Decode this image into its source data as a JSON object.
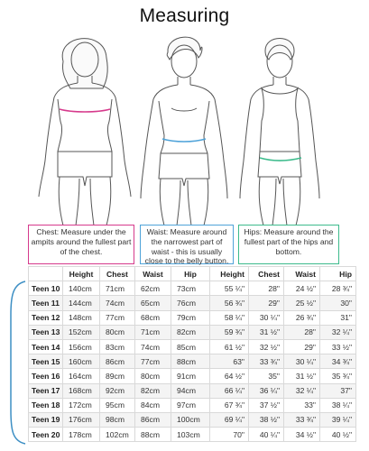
{
  "title": "Measuring",
  "colors": {
    "chest": "#d63a8c",
    "waist": "#4fa3d9",
    "hips": "#3dbb8c",
    "brace": "#3d8fc4"
  },
  "callouts": {
    "chest": "Chest: Measure under the ampits around the fullest part of the chest.",
    "waist": "Waist: Measure around the narrowest part of waist - this is usually close to the belly button.",
    "hips": "Hips: Measure around the fullest part of the hips and bottom."
  },
  "table": {
    "headers": [
      "",
      "Height",
      "Chest",
      "Waist",
      "Hip",
      "Height",
      "Chest",
      "Waist",
      "Hip"
    ],
    "rows": [
      [
        "Teen 10",
        "140cm",
        "71cm",
        "62cm",
        "73cm",
        "55 ¼\"",
        "28\"",
        "24 ½\"",
        "28 ¾\""
      ],
      [
        "Teen 11",
        "144cm",
        "74cm",
        "65cm",
        "76cm",
        "56 ¾\"",
        "29\"",
        "25 ½\"",
        "30\""
      ],
      [
        "Teen 12",
        "148cm",
        "77cm",
        "68cm",
        "79cm",
        "58 ¼\"",
        "30 ¼\"",
        "26 ¾\"",
        "31\""
      ],
      [
        "Teen 13",
        "152cm",
        "80cm",
        "71cm",
        "82cm",
        "59 ¾\"",
        "31 ½\"",
        "28\"",
        "32 ¼\""
      ],
      [
        "Teen 14",
        "156cm",
        "83cm",
        "74cm",
        "85cm",
        "61 ½\"",
        "32 ½\"",
        "29\"",
        "33 ½\""
      ],
      [
        "Teen 15",
        "160cm",
        "86cm",
        "77cm",
        "88cm",
        "63\"",
        "33 ¾\"",
        "30 ¼\"",
        "34 ¾\""
      ],
      [
        "Teen 16",
        "164cm",
        "89cm",
        "80cm",
        "91cm",
        "64 ½\"",
        "35\"",
        "31 ½\"",
        "35 ¾\""
      ],
      [
        "Teen 17",
        "168cm",
        "92cm",
        "82cm",
        "94cm",
        "66 ¼\"",
        "36 ¼\"",
        "32 ¼\"",
        "37\""
      ],
      [
        "Teen 18",
        "172cm",
        "95cm",
        "84cm",
        "97cm",
        "67 ¾\"",
        "37 ½\"",
        "33\"",
        "38 ¼\""
      ],
      [
        "Teen 19",
        "176cm",
        "98cm",
        "86cm",
        "100cm",
        "69 ¼\"",
        "38 ½\"",
        "33 ¾\"",
        "39 ¼\""
      ],
      [
        "Teen 20",
        "178cm",
        "102cm",
        "88cm",
        "103cm",
        "70\"",
        "40 ¼\"",
        "34 ½\"",
        "40 ½\""
      ]
    ]
  }
}
